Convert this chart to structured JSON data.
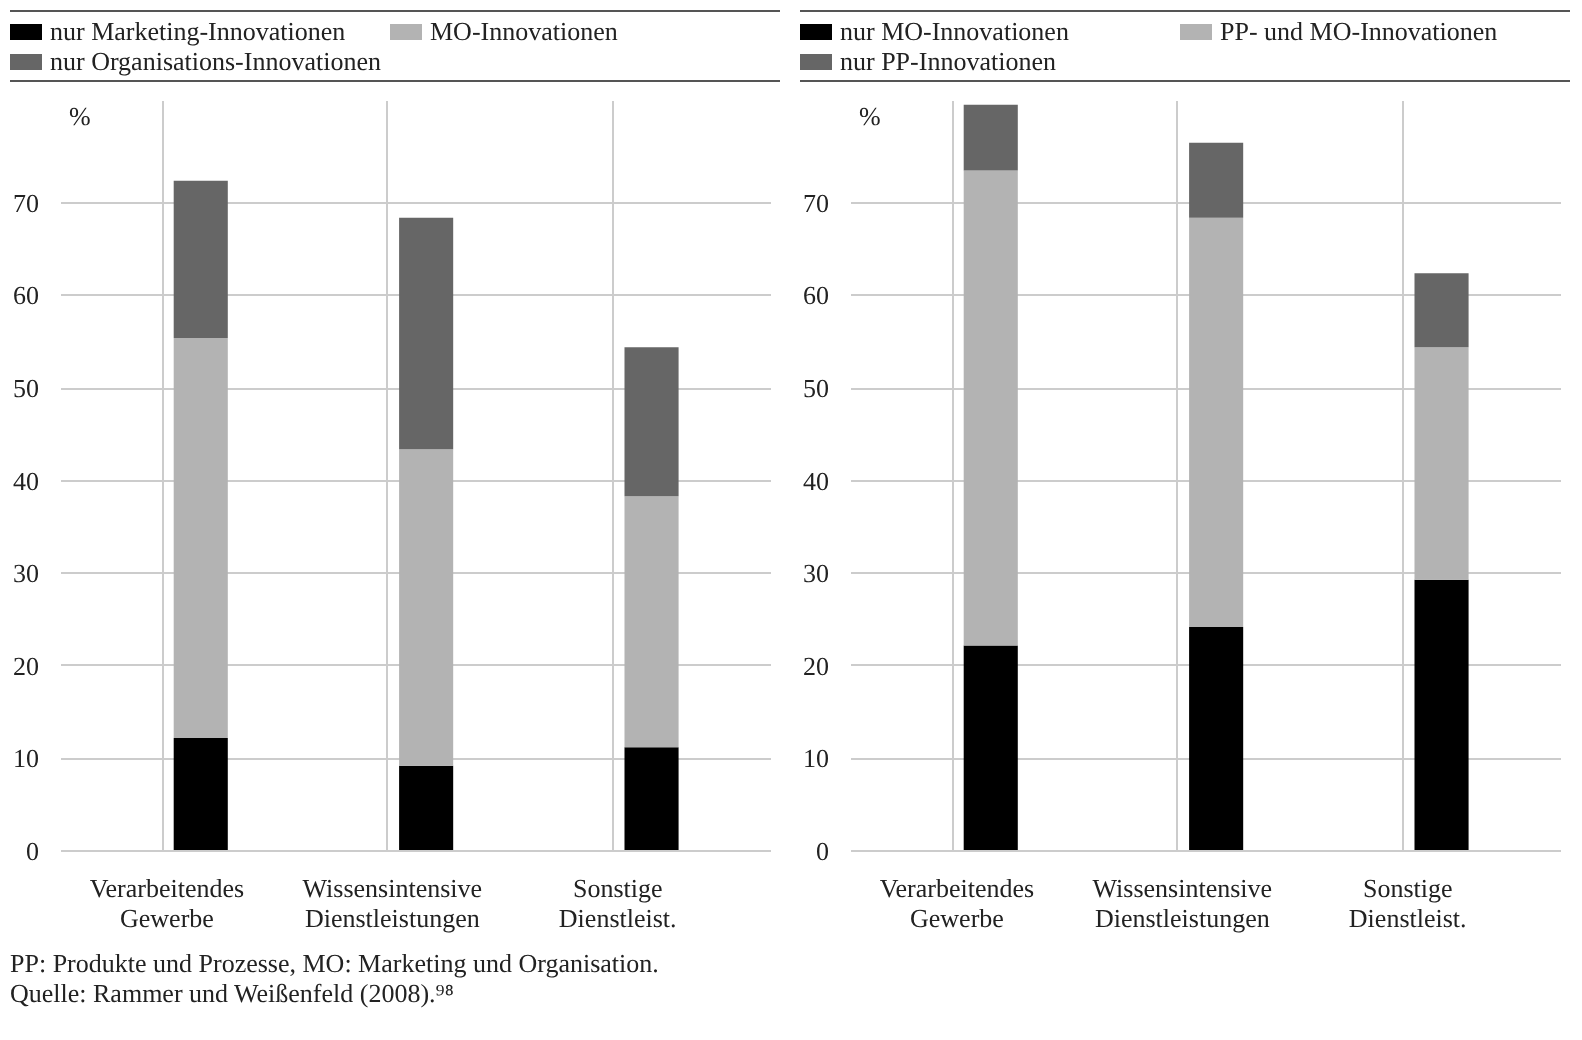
{
  "chart_data": [
    {
      "type": "bar",
      "stacked": true,
      "ylabel": "%",
      "categories": [
        "Verarbeitendes Gewerbe",
        "Wissensintensive Dienstleistungen",
        "Sonstige Dienstleist."
      ],
      "ylim": [
        0,
        81
      ],
      "yticks": [
        0,
        10,
        20,
        30,
        40,
        50,
        60,
        70
      ],
      "grid": true,
      "legend": "top",
      "series": [
        {
          "name": "nur Marketing-Innovationen",
          "color": "#000000",
          "values": [
            12.2,
            9.2,
            11.2
          ]
        },
        {
          "name": "MO-Innovationen",
          "color": "#b3b3b3",
          "values": [
            43.2,
            34.2,
            27.1
          ]
        },
        {
          "name": "nur Organisations-Innovationen",
          "color": "#666666",
          "values": [
            17.0,
            25.0,
            16.1
          ]
        }
      ]
    },
    {
      "type": "bar",
      "stacked": true,
      "ylabel": "%",
      "categories": [
        "Verarbeitendes Gewerbe",
        "Wissensintensive Dienstleistungen",
        "Sonstige Dienstleist."
      ],
      "ylim": [
        0,
        81
      ],
      "yticks": [
        0,
        10,
        20,
        30,
        40,
        50,
        60,
        70
      ],
      "grid": true,
      "legend": "top",
      "series": [
        {
          "name": "nur MO-Innovationen",
          "color": "#000000",
          "values": [
            22.2,
            24.2,
            29.3
          ]
        },
        {
          "name": "PP- und MO-Innovationen",
          "color": "#b3b3b3",
          "values": [
            51.3,
            44.2,
            25.1
          ]
        },
        {
          "name": "nur PP-Innovationen",
          "color": "#666666",
          "values": [
            7.1,
            8.1,
            8.0
          ]
        }
      ],
      "annotations": [
        "PP: Produkte und Prozesse, MO: Marketing und Organisation.",
        "Quelle: Rammer und Weißenfeld (2008).⁹⁸"
      ]
    }
  ]
}
